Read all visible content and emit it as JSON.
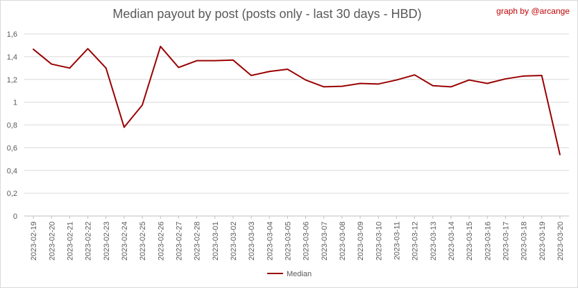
{
  "credit": "graph by @arcange",
  "chart_data": {
    "type": "line",
    "title": "Median payout by post (posts only - last 30 days - HBD)",
    "xlabel": "",
    "ylabel": "",
    "ylim": [
      0,
      1.6
    ],
    "yticks": [
      "0",
      "0,2",
      "0,4",
      "0,6",
      "0,8",
      "1",
      "1,2",
      "1,4",
      "1,6"
    ],
    "grid": "horizontal",
    "legend_position": "bottom",
    "categories": [
      "2023-02-19",
      "2023-02-20",
      "2023-02-21",
      "2023-02-22",
      "2023-02-23",
      "2023-02-24",
      "2023-02-25",
      "2023-02-26",
      "2023-02-27",
      "2023-02-28",
      "2023-03-01",
      "2023-03-02",
      "2023-03-03",
      "2023-03-04",
      "2023-03-05",
      "2023-03-06",
      "2023-03-07",
      "2023-03-08",
      "2023-03-09",
      "2023-03-10",
      "2023-03-11",
      "2023-03-12",
      "2023-03-13",
      "2023-03-14",
      "2023-03-15",
      "2023-03-16",
      "2023-03-17",
      "2023-03-18",
      "2023-03-19",
      "2023-03-20"
    ],
    "series": [
      {
        "name": "Median",
        "color": "#990000",
        "values": [
          1.465,
          1.335,
          1.3,
          1.47,
          1.3,
          0.78,
          0.975,
          1.49,
          1.305,
          1.365,
          1.365,
          1.37,
          1.235,
          1.27,
          1.29,
          1.195,
          1.135,
          1.14,
          1.165,
          1.16,
          1.195,
          1.24,
          1.145,
          1.135,
          1.195,
          1.165,
          1.205,
          1.23,
          1.235,
          0.54
        ]
      }
    ]
  }
}
